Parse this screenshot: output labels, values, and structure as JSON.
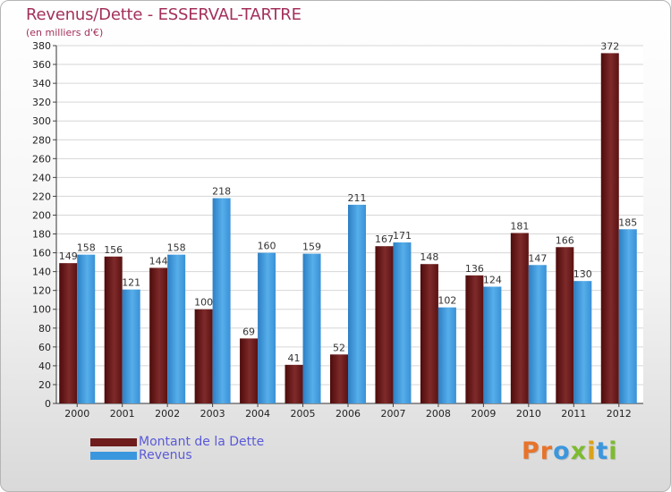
{
  "title": "Revenus/Dette - ESSERVAL-TARTRE",
  "subtitle": "(en milliers d'€)",
  "colors": {
    "dette": "#6e1c1c",
    "revenus": "#3b97dd",
    "title": "#a3305a",
    "legend_text": "#5a5ad8"
  },
  "legend": {
    "dette_label": "Montant de la Dette",
    "revenus_label": "Revenus"
  },
  "logo": {
    "text": "Proxiti"
  },
  "chart_data": {
    "type": "bar",
    "categories": [
      "2000",
      "2001",
      "2002",
      "2003",
      "2004",
      "2005",
      "2006",
      "2007",
      "2008",
      "2009",
      "2010",
      "2011",
      "2012"
    ],
    "series": [
      {
        "name": "Montant de la Dette",
        "values": [
          149,
          156,
          144,
          100,
          69,
          41,
          52,
          167,
          148,
          136,
          181,
          166,
          372
        ]
      },
      {
        "name": "Revenus",
        "values": [
          158,
          121,
          158,
          218,
          160,
          159,
          211,
          171,
          102,
          124,
          147,
          130,
          185
        ]
      }
    ],
    "ylim": [
      0,
      380
    ],
    "yticks": [
      0,
      20,
      40,
      60,
      80,
      100,
      120,
      140,
      160,
      180,
      200,
      220,
      240,
      260,
      280,
      300,
      320,
      340,
      360,
      380
    ],
    "grid": true,
    "legend_position": "bottom-left"
  }
}
